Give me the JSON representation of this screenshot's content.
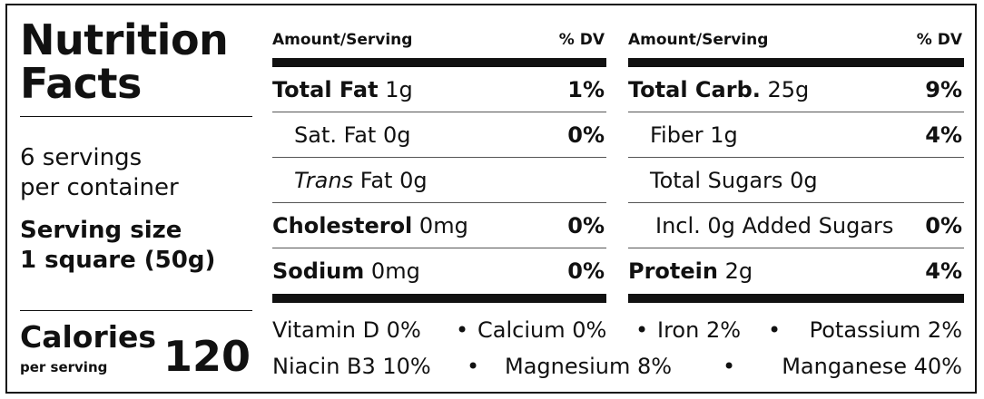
{
  "title_line1": "Nutrition",
  "title_line2": "Facts",
  "servings": "6 servings\nper container",
  "serving_size": "Serving size\n1 square (50g)",
  "calories": {
    "label": "Calories",
    "sub": "per serving",
    "value": "120"
  },
  "columns": [
    {
      "header_left": "Amount/Serving",
      "header_right": "% DV",
      "rows": [
        {
          "name": "Total Fat",
          "amount": "1g",
          "dv": "1%"
        },
        {
          "name": "Sat. Fat",
          "amount": "0g",
          "dv": "0%"
        },
        {
          "name_italic": "Trans",
          "name": "Fat",
          "amount": "0g",
          "dv": ""
        },
        {
          "name": "Cholesterol",
          "amount": "0mg",
          "dv": "0%"
        },
        {
          "name": "Sodium",
          "amount": "0mg",
          "dv": "0%"
        }
      ]
    },
    {
      "header_left": "Amount/Serving",
      "header_right": "% DV",
      "rows": [
        {
          "name": "Total Carb.",
          "amount": "25g",
          "dv": "9%"
        },
        {
          "name": "Fiber",
          "amount": "1g",
          "dv": "4%"
        },
        {
          "name": "Total Sugars",
          "amount": "0g",
          "dv": ""
        },
        {
          "name": "Incl. 0g Added Sugars",
          "amount": "",
          "dv": "0%"
        },
        {
          "name": "Protein",
          "amount": "2g",
          "dv": "4%"
        }
      ]
    }
  ],
  "vitamins": {
    "line1": [
      "Vitamin D 0%",
      "•",
      "Calcium 0%",
      "•",
      "Iron 2%",
      "•",
      "Potassium 2%"
    ],
    "line2": [
      "Niacin B3 10%",
      "•",
      "Magnesium 8%",
      "•",
      "Manganese 40%"
    ]
  }
}
